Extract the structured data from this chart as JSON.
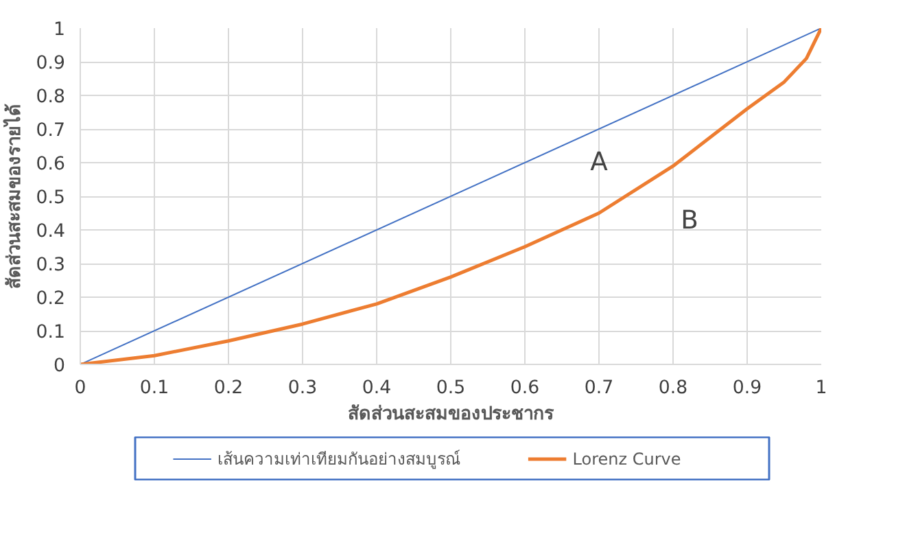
{
  "chart_data": {
    "type": "line",
    "xlabel": "สัดส่วนสะสมของประชากร",
    "ylabel": "สัดส่วนสะสมของรายได้",
    "x": [
      0,
      0.1,
      0.2,
      0.3,
      0.4,
      0.5,
      0.6,
      0.7,
      0.8,
      0.9,
      0.95,
      0.98,
      1
    ],
    "series": [
      {
        "name": "เส้นความเท่าเทียมกันอย่างสมบูรณ์",
        "color": "#4472c4",
        "x": [
          0,
          1
        ],
        "values": [
          0,
          1
        ]
      },
      {
        "name": "Lorenz Curve",
        "color": "#ed7d31",
        "values": [
          0,
          0.026,
          0.07,
          0.12,
          0.18,
          0.26,
          0.35,
          0.45,
          0.59,
          0.76,
          0.84,
          0.91,
          1
        ]
      }
    ],
    "annotations": [
      "A",
      "B"
    ],
    "xlim": [
      0,
      1
    ],
    "ylim": [
      0,
      1
    ],
    "xticks": [
      0,
      0.1,
      0.2,
      0.3,
      0.4,
      0.5,
      0.6,
      0.7,
      0.8,
      0.9,
      1
    ],
    "yticks": [
      0,
      0.1,
      0.2,
      0.3,
      0.4,
      0.5,
      0.6,
      0.7,
      0.8,
      0.9,
      1
    ],
    "grid": true,
    "legend": "bottom",
    "marker": "none",
    "line_style": "solid"
  }
}
